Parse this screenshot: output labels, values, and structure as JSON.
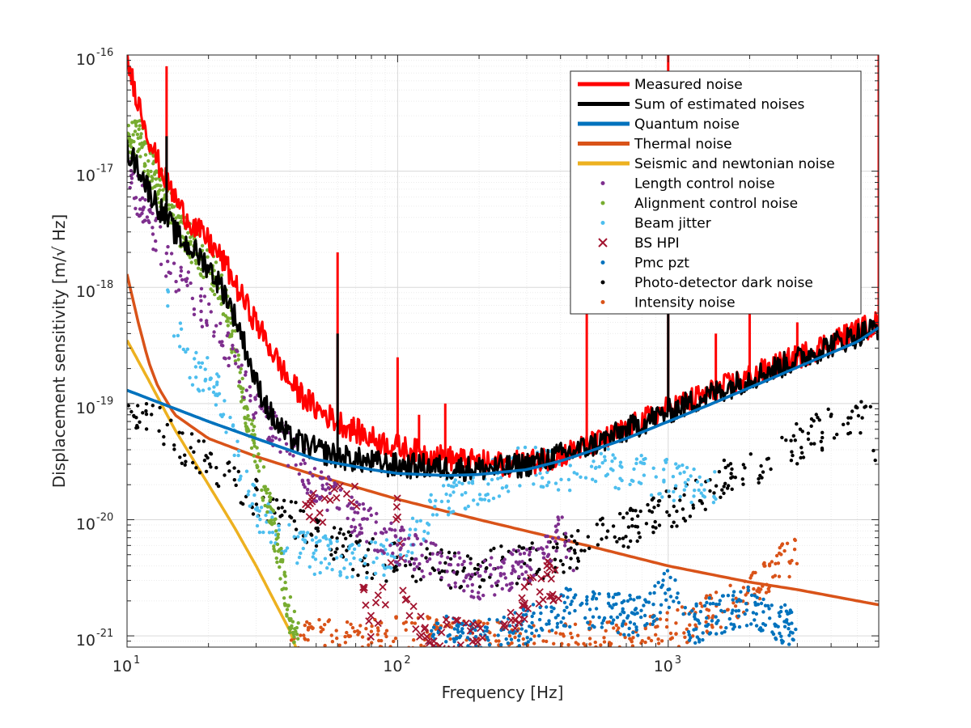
{
  "chart_data": {
    "type": "line",
    "xlabel": "Frequency [Hz]",
    "ylabel": "Displacement sensitivity [m/√ Hz]",
    "xscale": "log",
    "yscale": "log",
    "xlim": [
      10,
      6000
    ],
    "ylim": [
      8e-22,
      1e-16
    ],
    "x_ticks": [
      {
        "value": 10,
        "base": "10",
        "exp": "1"
      },
      {
        "value": 100,
        "base": "10",
        "exp": "2"
      },
      {
        "value": 1000,
        "base": "10",
        "exp": "3"
      }
    ],
    "y_ticks": [
      {
        "value": 1e-21,
        "base": "10",
        "exp": "-21"
      },
      {
        "value": 1e-20,
        "base": "10",
        "exp": "-20"
      },
      {
        "value": 1e-19,
        "base": "10",
        "exp": "-19"
      },
      {
        "value": 1e-18,
        "base": "10",
        "exp": "-18"
      },
      {
        "value": 1e-17,
        "base": "10",
        "exp": "-17"
      },
      {
        "value": 1e-16,
        "base": "10",
        "exp": "-16"
      }
    ],
    "grid": true,
    "legend_position": "top-right",
    "series": [
      {
        "name": "Measured noise",
        "style": "line",
        "color": "#ff0000",
        "x": [
          10,
          11,
          12,
          13,
          14,
          15,
          16,
          18,
          20,
          23,
          26,
          30,
          35,
          40,
          50,
          60,
          80,
          100,
          120,
          150,
          200,
          250,
          300,
          400,
          500,
          600,
          800,
          1000,
          1500,
          2000,
          3000,
          4000,
          5000,
          6000
        ],
        "y": [
          9e-17,
          4e-17,
          2e-17,
          1.2e-17,
          8e-18,
          6e-18,
          4.5e-18,
          3.2e-18,
          2.5e-18,
          1.6e-18,
          9e-19,
          5e-19,
          2.6e-19,
          1.5e-19,
          9e-20,
          7e-20,
          5e-20,
          4.2e-20,
          3.8e-20,
          3.4e-20,
          3.1e-20,
          3e-20,
          3.1e-20,
          3.6e-20,
          4.3e-20,
          5e-20,
          7e-20,
          9e-20,
          1.3e-19,
          1.7e-19,
          2.5e-19,
          3.4e-19,
          4.2e-19,
          5e-19
        ],
        "peaks": [
          {
            "x": 14,
            "y": 8e-17
          },
          {
            "x": 60,
            "y": 2e-18
          },
          {
            "x": 100,
            "y": 2.5e-19
          },
          {
            "x": 120,
            "y": 8e-20
          },
          {
            "x": 150,
            "y": 1e-19
          },
          {
            "x": 500,
            "y": 1e-18
          },
          {
            "x": 1000,
            "y": 1e-16
          },
          {
            "x": 1500,
            "y": 4e-19
          },
          {
            "x": 2000,
            "y": 6e-19
          },
          {
            "x": 3000,
            "y": 5e-19
          },
          {
            "x": 6000,
            "y": 1e-16
          }
        ]
      },
      {
        "name": "Sum of estimated noises",
        "style": "line",
        "color": "#000000",
        "x": [
          10,
          11,
          12,
          13,
          14,
          15,
          16,
          18,
          20,
          23,
          26,
          30,
          35,
          40,
          50,
          60,
          80,
          100,
          120,
          150,
          200,
          250,
          300,
          400,
          500,
          600,
          800,
          1000,
          1500,
          2000,
          3000,
          4000,
          5000,
          6000
        ],
        "y": [
          1.5e-17,
          1.1e-17,
          7e-18,
          5e-18,
          4e-18,
          3e-18,
          2.5e-18,
          2e-18,
          1.5e-18,
          9e-19,
          4.5e-19,
          1.5e-19,
          7e-20,
          5e-20,
          4e-20,
          3.5e-20,
          3.1e-20,
          2.9e-20,
          2.9e-20,
          2.8e-20,
          2.75e-20,
          2.8e-20,
          3e-20,
          3.6e-20,
          4.2e-20,
          5e-20,
          6.8e-20,
          8.5e-20,
          1.25e-19,
          1.65e-19,
          2.4e-19,
          3.2e-19,
          3.9e-19,
          4.6e-19
        ],
        "peaks": [
          {
            "x": 14,
            "y": 2e-17
          },
          {
            "x": 60,
            "y": 4e-19
          },
          {
            "x": 1000,
            "y": 6e-19
          }
        ]
      },
      {
        "name": "Quantum noise",
        "style": "line",
        "color": "#0072bd",
        "x": [
          10,
          20,
          30,
          50,
          80,
          100,
          150,
          200,
          300,
          400,
          500,
          700,
          1000,
          1500,
          2000,
          3000,
          4000,
          5000,
          6000
        ],
        "y": [
          1.3e-19,
          7e-20,
          5e-20,
          3.3e-20,
          2.7e-20,
          2.5e-20,
          2.4e-20,
          2.45e-20,
          2.7e-20,
          3.2e-20,
          3.8e-20,
          5e-20,
          7e-20,
          1.03e-19,
          1.37e-19,
          2.05e-19,
          2.73e-19,
          3.4e-19,
          4.5e-19
        ]
      },
      {
        "name": "Thermal noise",
        "style": "line",
        "color": "#d95319",
        "x": [
          10,
          11,
          12,
          13,
          15,
          20,
          30,
          50,
          100,
          200,
          500,
          1000,
          2000,
          3000,
          5000,
          6000
        ],
        "y": [
          1.3e-18,
          5e-19,
          2.3e-19,
          1.4e-19,
          8e-20,
          5e-20,
          3.5e-20,
          2.4e-20,
          1.5e-20,
          1e-20,
          6e-21,
          4e-21,
          2.9e-21,
          2.5e-21,
          2e-21,
          1.85e-21
        ]
      },
      {
        "name": "Seismic and newtonian noise",
        "style": "line",
        "color": "#edb120",
        "x": [
          10,
          12,
          15,
          20,
          25,
          30,
          35,
          40,
          42
        ],
        "y": [
          3.5e-19,
          1.6e-19,
          6e-20,
          2e-20,
          8.5e-21,
          4e-21,
          2e-21,
          1.1e-21,
          8e-22
        ]
      },
      {
        "name": "Length control noise",
        "style": "dots",
        "color": "#7e2f8e",
        "x": [
          10,
          15,
          20,
          25,
          30,
          40,
          50,
          70,
          100,
          150,
          200,
          300,
          400,
          450
        ],
        "y": [
          1e-17,
          1.2e-18,
          6e-19,
          2.5e-19,
          1e-19,
          4e-20,
          2e-20,
          1e-20,
          6e-21,
          4e-21,
          3e-21,
          4e-21,
          8e-21,
          3.5e-21
        ]
      },
      {
        "name": "Alignment control noise",
        "style": "dots",
        "color": "#77ac30",
        "x": [
          10,
          11,
          12,
          13,
          14,
          15,
          17,
          20,
          23,
          26,
          28,
          30,
          32,
          35,
          38,
          40,
          43
        ],
        "y": [
          1.8e-17,
          2e-17,
          1.2e-17,
          8e-18,
          6e-18,
          4e-18,
          2.5e-18,
          1.5e-18,
          8e-19,
          2e-19,
          6e-20,
          4e-20,
          2e-20,
          8e-21,
          3e-21,
          1.5e-21,
          9e-22
        ]
      },
      {
        "name": "Beam jitter",
        "style": "dots",
        "color": "#4dbeee",
        "x": [
          14,
          15,
          17,
          20,
          23,
          25,
          28,
          30,
          35,
          40,
          50,
          70,
          100,
          150,
          200,
          300,
          400,
          500,
          700,
          1000,
          1500
        ],
        "y": [
          9e-19,
          5e-19,
          2e-19,
          1.8e-19,
          9e-20,
          4e-20,
          2e-20,
          1.2e-20,
          8e-21,
          6e-21,
          5e-21,
          4.5e-21,
          5e-21,
          1.6e-20,
          2e-20,
          3e-20,
          2.5e-20,
          3e-20,
          2.5e-20,
          2.2e-20,
          2e-20
        ]
      },
      {
        "name": "BS HPI",
        "style": "cross",
        "color": "#a2142f",
        "x": [
          45,
          48,
          60,
          70,
          72,
          75,
          80,
          90,
          100,
          102,
          105,
          110,
          120,
          150,
          200,
          250,
          300,
          350,
          400
        ],
        "y": [
          1.5e-20,
          1.2e-20,
          1.4e-20,
          1.3e-20,
          5e-21,
          2e-21,
          1.2e-21,
          2e-21,
          1.3e-20,
          8e-21,
          3e-21,
          1.5e-21,
          1e-21,
          1e-21,
          1e-21,
          1e-21,
          2e-21,
          3e-21,
          3e-21
        ]
      },
      {
        "name": "Pmc pzt",
        "style": "dots",
        "color": "#0072bd",
        "x": [
          130,
          150,
          200,
          250,
          300,
          400,
          500,
          600,
          700,
          800,
          1000,
          1200,
          1500,
          2000,
          2500,
          3000
        ],
        "y": [
          9e-22,
          1e-21,
          9e-22,
          1e-21,
          1.2e-21,
          1.8e-21,
          1.6e-21,
          1.6e-21,
          1.5e-21,
          1.5e-21,
          2.6e-21,
          1.2e-21,
          1.5e-21,
          1.8e-21,
          1.2e-21,
          1.3e-21
        ]
      },
      {
        "name": "Photo-detector dark noise",
        "style": "dots",
        "color": "#000000",
        "x": [
          10,
          15,
          20,
          30,
          50,
          70,
          100,
          150,
          200,
          300,
          400,
          500,
          700,
          1000,
          1500,
          2000,
          3000,
          4000,
          5000,
          5500,
          6000
        ],
        "y": [
          1e-19,
          5e-20,
          3e-20,
          1.6e-20,
          8e-21,
          5e-21,
          4.2e-21,
          3.8e-21,
          3.8e-21,
          4.2e-21,
          5e-21,
          6e-21,
          8.5e-21,
          1.2e-20,
          2e-20,
          2.8e-20,
          4.5e-20,
          6.5e-20,
          8e-20,
          8.5e-20,
          2e-20
        ]
      },
      {
        "name": "Intensity noise",
        "style": "dots",
        "color": "#d95319",
        "x": [
          40,
          60,
          80,
          90,
          600,
          700,
          800,
          1000,
          1200,
          1500,
          2000,
          2500,
          3000
        ],
        "y": [
          9e-22,
          1e-21,
          9e-22,
          1e-21,
          9e-22,
          9e-22,
          1e-21,
          1.1e-21,
          1.3e-21,
          1.6e-21,
          2.5e-21,
          3.8e-21,
          5.5e-21
        ]
      }
    ]
  }
}
